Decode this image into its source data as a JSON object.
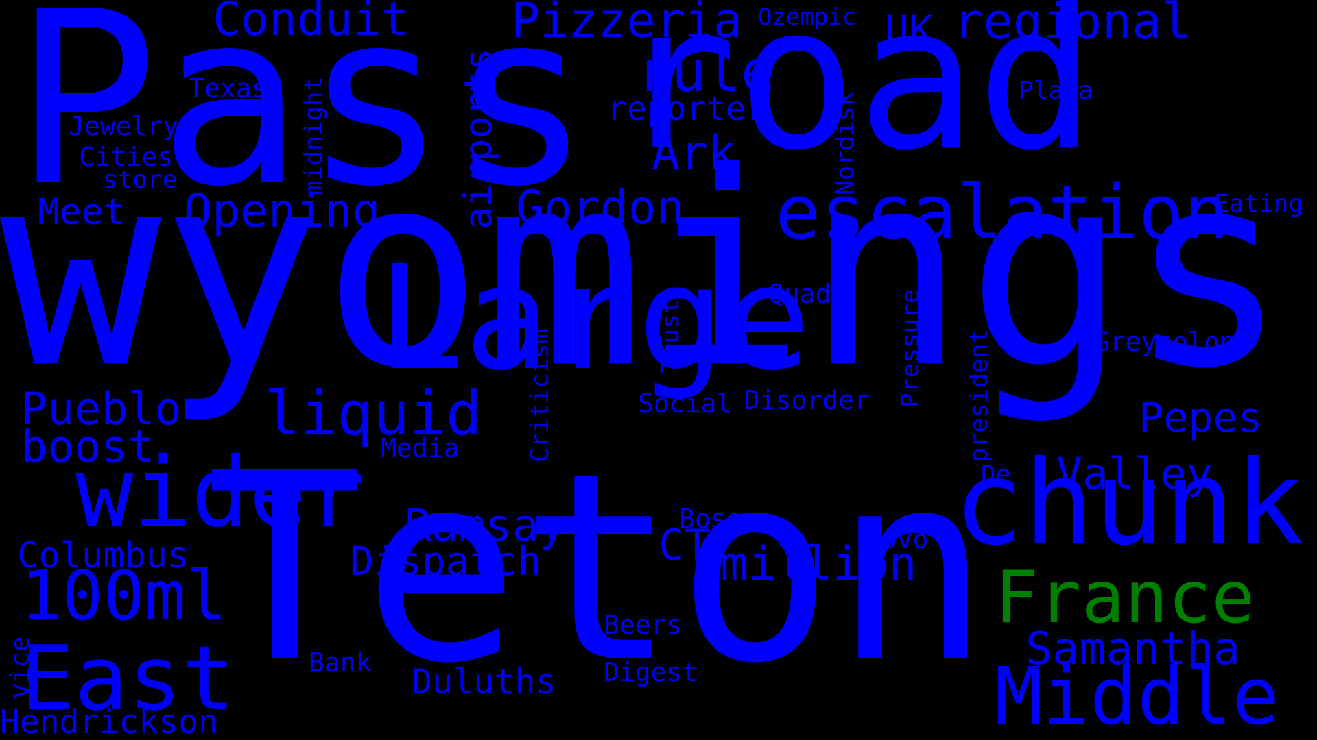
{
  "background": "#000000",
  "colors": {
    "blue": "#0000ff",
    "green": "#008000"
  },
  "words": [
    {
      "text": "Pass",
      "color": "blue"
    },
    {
      "text": "road",
      "color": "blue"
    },
    {
      "text": "wyomings",
      "color": "blue"
    },
    {
      "text": "Teton",
      "color": "blue"
    },
    {
      "text": "Large",
      "color": "blue"
    },
    {
      "text": "chunk",
      "color": "blue"
    },
    {
      "text": "escalation",
      "color": "blue"
    },
    {
      "text": "Middle",
      "color": "blue"
    },
    {
      "text": "France",
      "color": "green"
    },
    {
      "text": "wider",
      "color": "blue"
    },
    {
      "text": "East",
      "color": "blue"
    },
    {
      "text": "100ml",
      "color": "blue"
    },
    {
      "text": "liquid",
      "color": "blue"
    },
    {
      "text": "Samantha",
      "color": "blue"
    },
    {
      "text": "million",
      "color": "blue"
    },
    {
      "text": "regional",
      "color": "blue"
    },
    {
      "text": "Pizzeria",
      "color": "blue"
    },
    {
      "text": "Conduit",
      "color": "blue"
    },
    {
      "text": "rule",
      "color": "blue"
    },
    {
      "text": "Gordon",
      "color": "blue"
    },
    {
      "text": "Opening",
      "color": "blue"
    },
    {
      "text": "airports",
      "color": "blue"
    },
    {
      "text": "Ark",
      "color": "blue"
    },
    {
      "text": "Pueblo",
      "color": "blue"
    },
    {
      "text": "boost",
      "color": "blue"
    },
    {
      "text": "Ramsay",
      "color": "blue"
    },
    {
      "text": "Dispatch",
      "color": "blue"
    },
    {
      "text": "Hendrickson",
      "color": "blue"
    },
    {
      "text": "Columbus",
      "color": "blue"
    },
    {
      "text": "Valley",
      "color": "blue"
    },
    {
      "text": "Pepes",
      "color": "blue"
    },
    {
      "text": "Duluths",
      "color": "blue"
    },
    {
      "text": "CT",
      "color": "blue"
    },
    {
      "text": "Meet",
      "color": "blue"
    },
    {
      "text": "UK",
      "color": "blue"
    },
    {
      "text": "reporter",
      "color": "blue"
    },
    {
      "text": "Greysolon",
      "color": "blue"
    },
    {
      "text": "Social",
      "color": "blue"
    },
    {
      "text": "Disorder",
      "color": "blue"
    },
    {
      "text": "Eating",
      "color": "blue"
    },
    {
      "text": "Quad",
      "color": "blue"
    },
    {
      "text": "Ozempic",
      "color": "blue"
    },
    {
      "text": "Plaza",
      "color": "blue"
    },
    {
      "text": "Texas",
      "color": "blue"
    },
    {
      "text": "Jewelry",
      "color": "blue"
    },
    {
      "text": "Cities",
      "color": "blue"
    },
    {
      "text": "store",
      "color": "blue"
    },
    {
      "text": "midnight",
      "color": "blue"
    },
    {
      "text": "Nordisk",
      "color": "blue"
    },
    {
      "text": "Novo",
      "color": "blue"
    },
    {
      "text": "Boss",
      "color": "blue"
    },
    {
      "text": "Beers",
      "color": "blue"
    },
    {
      "text": "Digest",
      "color": "blue"
    },
    {
      "text": "Bank",
      "color": "blue"
    },
    {
      "text": "Media",
      "color": "blue"
    },
    {
      "text": "De",
      "color": "blue"
    },
    {
      "text": "Criticism",
      "color": "blue"
    },
    {
      "text": "Trust",
      "color": "blue"
    },
    {
      "text": "Pressure",
      "color": "blue"
    },
    {
      "text": "president",
      "color": "blue"
    },
    {
      "text": "vice",
      "color": "blue"
    }
  ]
}
